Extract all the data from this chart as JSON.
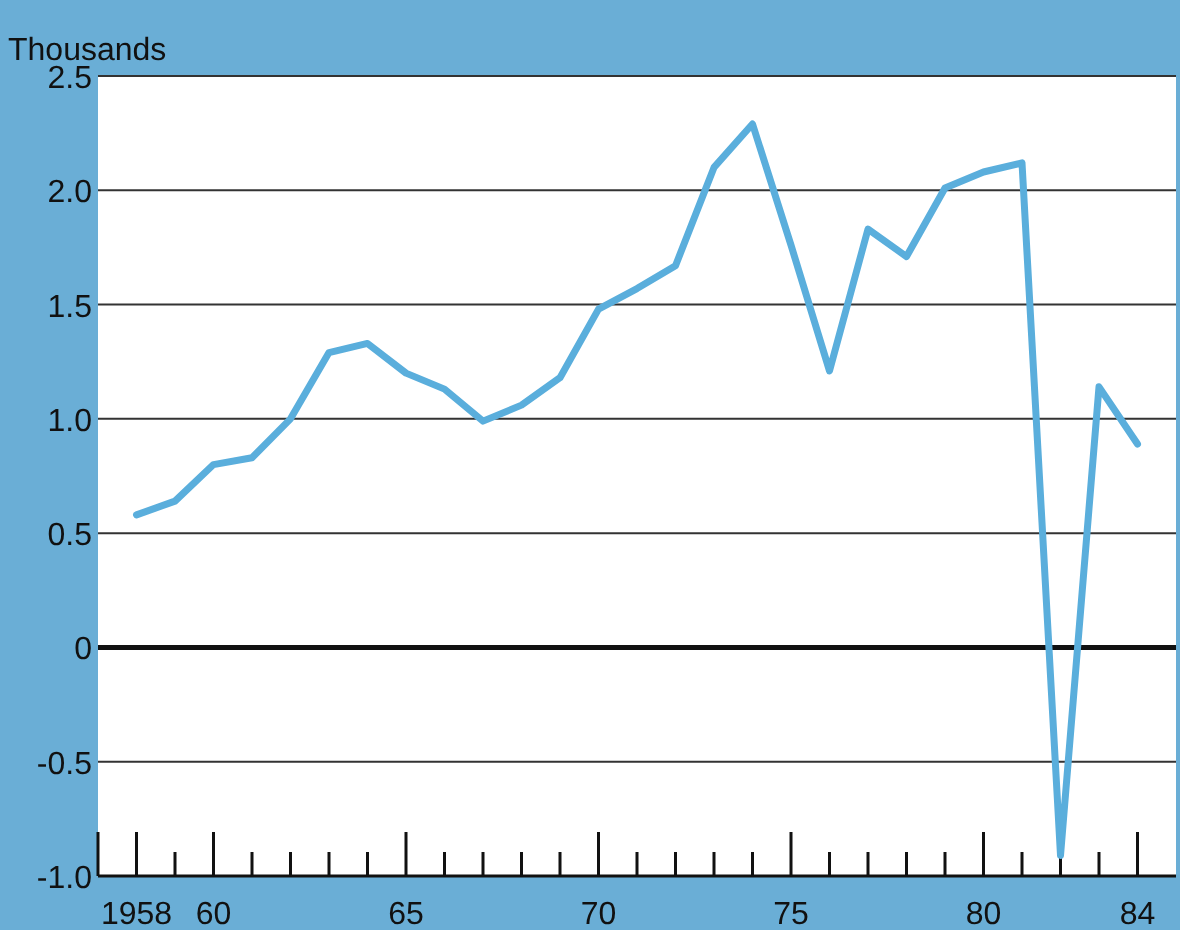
{
  "chart_data": {
    "type": "line",
    "ylabel": "Thousands",
    "x": [
      1958,
      1959,
      1960,
      1961,
      1962,
      1963,
      1964,
      1965,
      1966,
      1967,
      1968,
      1969,
      1970,
      1971,
      1972,
      1973,
      1974,
      1975,
      1976,
      1977,
      1978,
      1979,
      1980,
      1981,
      1982,
      1983,
      1984
    ],
    "series": [
      {
        "color": "#5aaedc",
        "values": [
          0.58,
          0.64,
          0.8,
          0.83,
          1.0,
          1.29,
          1.33,
          1.2,
          1.13,
          0.99,
          1.06,
          1.18,
          1.48,
          1.57,
          1.67,
          2.1,
          2.29,
          1.76,
          1.21,
          1.83,
          1.71,
          2.01,
          2.08,
          2.12,
          -0.91,
          1.14,
          0.89
        ]
      }
    ],
    "xlim": [
      1957,
      1985
    ],
    "xticks": [
      {
        "value": 1958,
        "label": "1958"
      },
      {
        "value": 1959,
        "label": null
      },
      {
        "value": 1960,
        "label": "60"
      },
      {
        "value": 1961,
        "label": null
      },
      {
        "value": 1962,
        "label": null
      },
      {
        "value": 1963,
        "label": null
      },
      {
        "value": 1964,
        "label": null
      },
      {
        "value": 1965,
        "label": "65"
      },
      {
        "value": 1966,
        "label": null
      },
      {
        "value": 1967,
        "label": null
      },
      {
        "value": 1968,
        "label": null
      },
      {
        "value": 1969,
        "label": null
      },
      {
        "value": 1970,
        "label": "70"
      },
      {
        "value": 1971,
        "label": null
      },
      {
        "value": 1972,
        "label": null
      },
      {
        "value": 1973,
        "label": null
      },
      {
        "value": 1974,
        "label": null
      },
      {
        "value": 1975,
        "label": "75"
      },
      {
        "value": 1976,
        "label": null
      },
      {
        "value": 1977,
        "label": null
      },
      {
        "value": 1978,
        "label": null
      },
      {
        "value": 1979,
        "label": null
      },
      {
        "value": 1980,
        "label": "80"
      },
      {
        "value": 1981,
        "label": null
      },
      {
        "value": 1982,
        "label": null
      },
      {
        "value": 1983,
        "label": null
      },
      {
        "value": 1984,
        "label": "84"
      }
    ],
    "ylim": [
      -1.0,
      2.5
    ],
    "yticks": [
      {
        "value": -1,
        "label": "-1.0"
      },
      {
        "value": -0.5,
        "label": "-0.5"
      },
      0,
      {
        "value": 0.5,
        "label": "0.5"
      },
      {
        "value": 1,
        "label": "1.0"
      },
      {
        "value": 1.5,
        "label": "1.5"
      },
      {
        "value": 2,
        "label": "2.0"
      },
      {
        "value": 2.5,
        "label": "2.5"
      }
    ],
    "grid": "y",
    "ref_lines": [
      {
        "axis": "y",
        "value": 0,
        "color": "#111111"
      }
    ],
    "line_style": "solid",
    "marker": "none"
  }
}
